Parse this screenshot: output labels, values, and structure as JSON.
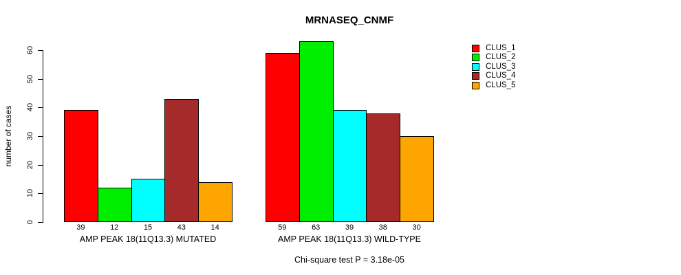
{
  "title": "MRNASEQ_CNMF",
  "footnote": "Chi-square test P = 3.18e-05",
  "chart_data": {
    "type": "bar",
    "title": "MRNASEQ_CNMF",
    "ylabel": "number of cases",
    "xlabel": "",
    "ylim": [
      0,
      63
    ],
    "yticks": [
      0,
      10,
      20,
      30,
      40,
      50,
      60
    ],
    "grid": false,
    "legend_position": "top-right",
    "categories": [
      "AMP PEAK 18(11Q13.3) MUTATED",
      "AMP PEAK 18(11Q13.3) WILD-TYPE"
    ],
    "series": [
      {
        "name": "CLUS_1",
        "color": "#ff0000",
        "values": [
          39,
          59
        ]
      },
      {
        "name": "CLUS_2",
        "color": "#00ee00",
        "values": [
          12,
          63
        ]
      },
      {
        "name": "CLUS_3",
        "color": "#00ffff",
        "values": [
          15,
          39
        ]
      },
      {
        "name": "CLUS_4",
        "color": "#a52a2a",
        "values": [
          43,
          38
        ]
      },
      {
        "name": "CLUS_5",
        "color": "#ffa500",
        "values": [
          14,
          30
        ]
      }
    ],
    "bar_value_labels": [
      [
        39,
        12,
        15,
        43,
        14
      ],
      [
        59,
        63,
        39,
        38,
        30
      ]
    ],
    "footnote": "Chi-square test P = 3.18e-05"
  }
}
